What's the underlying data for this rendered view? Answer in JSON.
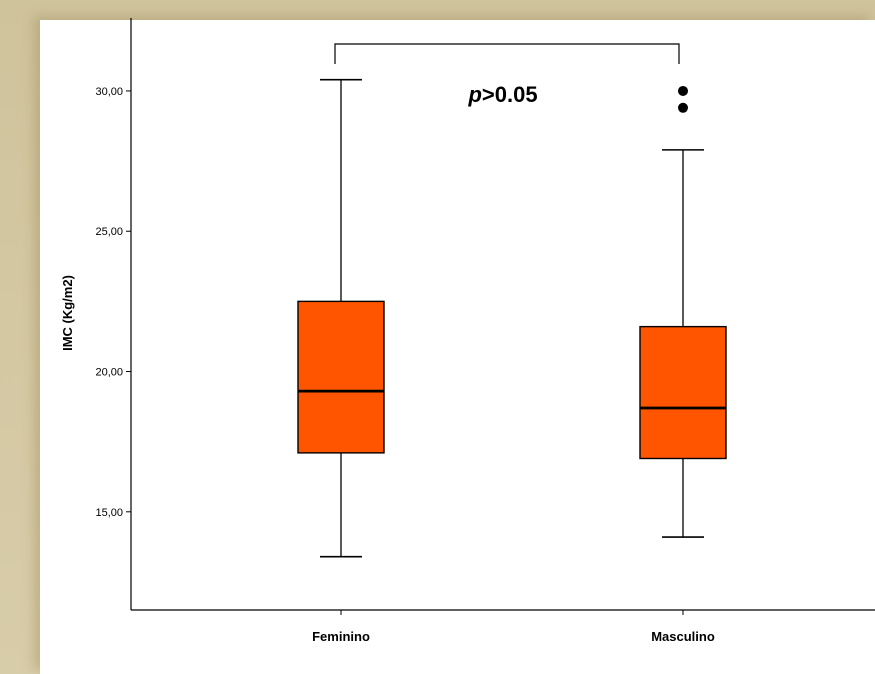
{
  "chart_data": {
    "type": "box",
    "ylabel": "IMC (Kg/m2)",
    "xlabel": "",
    "title": "",
    "ylim": [
      11.5,
      32.6
    ],
    "yticks": [
      15,
      20,
      25,
      30
    ],
    "ytick_labels": [
      "15,00",
      "20,00",
      "25,00",
      "30,00"
    ],
    "categories": [
      "Feminino",
      "Masculino"
    ],
    "boxes": [
      {
        "name": "Feminino",
        "whisker_low": 13.4,
        "q1": 17.1,
        "median": 19.3,
        "q3": 22.5,
        "whisker_high": 30.4,
        "outliers": []
      },
      {
        "name": "Masculino",
        "whisker_low": 14.1,
        "q1": 16.9,
        "median": 18.7,
        "q3": 21.6,
        "whisker_high": 27.9,
        "outliers": [
          29.4,
          30.0
        ]
      }
    ],
    "annotation": {
      "italic": "p",
      "text": ">0.05"
    },
    "box_color": "#ff5500",
    "grid": false
  }
}
